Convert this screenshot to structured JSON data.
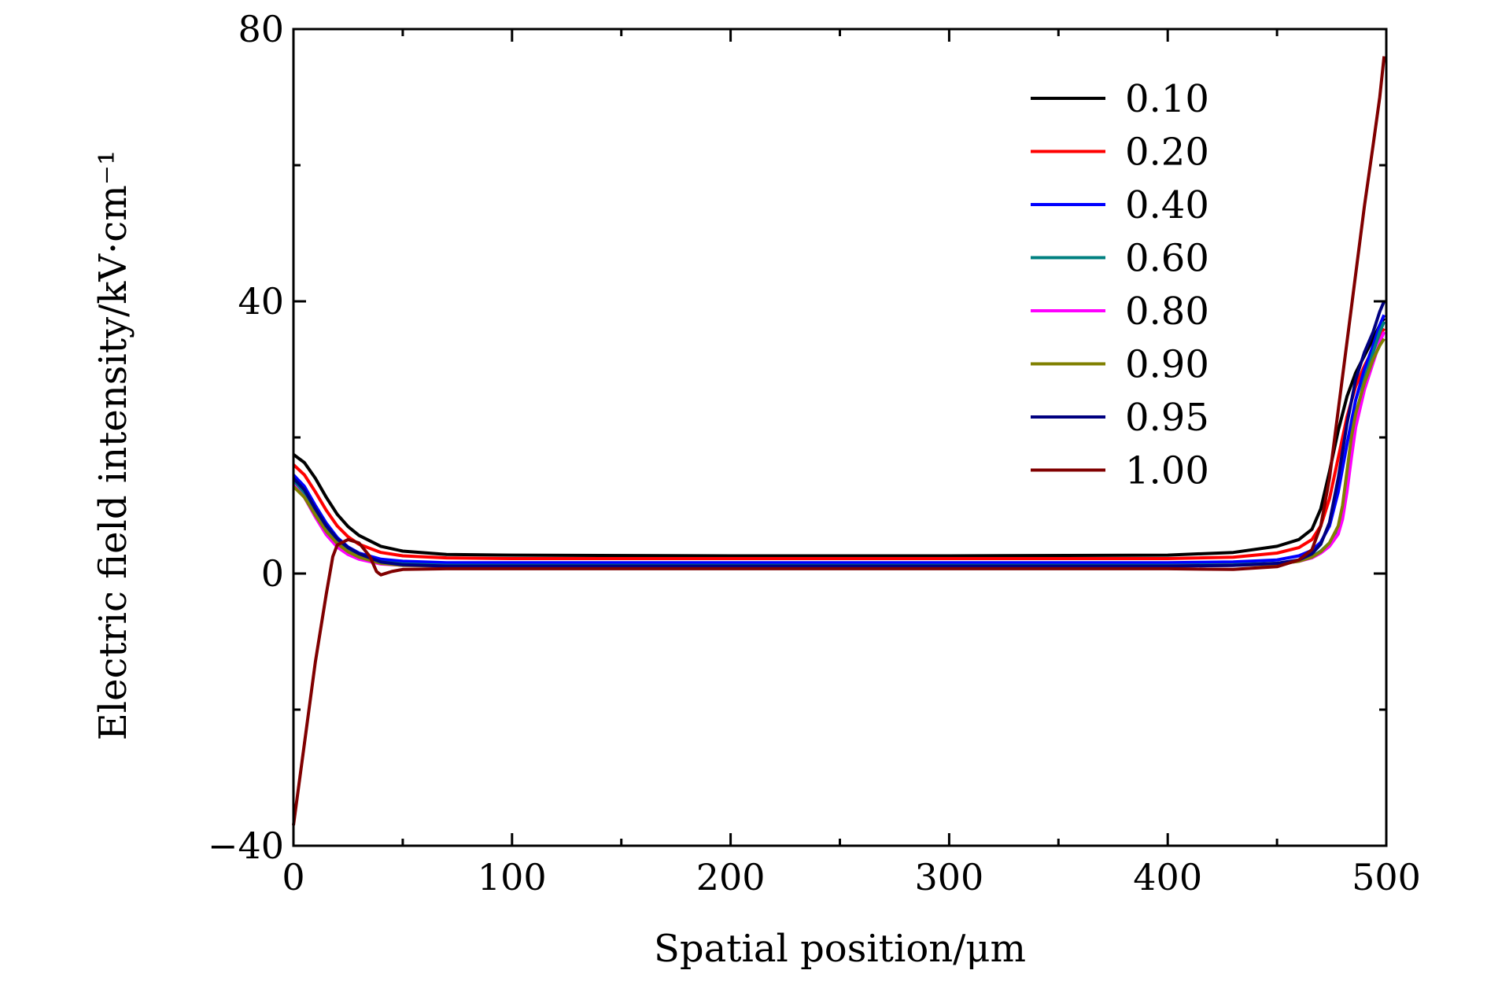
{
  "chart_data": {
    "type": "line",
    "title": "",
    "xlabel": "Spatial position/μm",
    "ylabel": "Electric field intensity/kV·cm⁻¹",
    "xlim": [
      0,
      500
    ],
    "ylim": [
      -40,
      80
    ],
    "x_ticks": [
      0,
      100,
      200,
      300,
      400,
      500
    ],
    "x_tick_labels": [
      "0",
      "100",
      "200",
      "300",
      "400",
      "500"
    ],
    "y_ticks": [
      -40,
      0,
      40,
      80
    ],
    "y_tick_labels": [
      "−40",
      "0",
      "40",
      "80"
    ],
    "grid": false,
    "legend_position": "top-right",
    "series": [
      {
        "name": "0.10",
        "color": "#000000",
        "points": [
          [
            0,
            17.5
          ],
          [
            5,
            16.3
          ],
          [
            10,
            14
          ],
          [
            15,
            11.2
          ],
          [
            20,
            8.7
          ],
          [
            25,
            6.9
          ],
          [
            30,
            5.6
          ],
          [
            40,
            4.0
          ],
          [
            50,
            3.3
          ],
          [
            70,
            2.8
          ],
          [
            100,
            2.7
          ],
          [
            200,
            2.6
          ],
          [
            300,
            2.6
          ],
          [
            400,
            2.7
          ],
          [
            430,
            3.1
          ],
          [
            450,
            4.0
          ],
          [
            460,
            5.0
          ],
          [
            466,
            6.5
          ],
          [
            470,
            9.5
          ],
          [
            474,
            15
          ],
          [
            478,
            21
          ],
          [
            482,
            26
          ],
          [
            486,
            29.5
          ],
          [
            490,
            32
          ],
          [
            494,
            34.5
          ],
          [
            497,
            36.5
          ],
          [
            499,
            37.5
          ]
        ]
      },
      {
        "name": "0.20",
        "color": "#ff0000",
        "points": [
          [
            0,
            16
          ],
          [
            5,
            14.5
          ],
          [
            10,
            12
          ],
          [
            15,
            9.3
          ],
          [
            20,
            7.0
          ],
          [
            25,
            5.4
          ],
          [
            30,
            4.3
          ],
          [
            40,
            3.1
          ],
          [
            50,
            2.6
          ],
          [
            70,
            2.3
          ],
          [
            100,
            2.2
          ],
          [
            200,
            2.2
          ],
          [
            300,
            2.2
          ],
          [
            400,
            2.2
          ],
          [
            430,
            2.4
          ],
          [
            450,
            3.0
          ],
          [
            460,
            3.8
          ],
          [
            466,
            5.0
          ],
          [
            470,
            7.0
          ],
          [
            474,
            11
          ],
          [
            478,
            17
          ],
          [
            482,
            23
          ],
          [
            486,
            27.5
          ],
          [
            490,
            30.5
          ],
          [
            494,
            33
          ],
          [
            497,
            35
          ],
          [
            499,
            36
          ]
        ]
      },
      {
        "name": "0.40",
        "color": "#0000ff",
        "points": [
          [
            0,
            14.5
          ],
          [
            5,
            12.8
          ],
          [
            10,
            10
          ],
          [
            15,
            7.4
          ],
          [
            20,
            5.3
          ],
          [
            25,
            3.9
          ],
          [
            30,
            3.0
          ],
          [
            40,
            2.1
          ],
          [
            50,
            1.8
          ],
          [
            70,
            1.6
          ],
          [
            100,
            1.6
          ],
          [
            200,
            1.6
          ],
          [
            300,
            1.6
          ],
          [
            400,
            1.6
          ],
          [
            430,
            1.7
          ],
          [
            450,
            2.0
          ],
          [
            460,
            2.6
          ],
          [
            466,
            3.4
          ],
          [
            470,
            4.6
          ],
          [
            474,
            7
          ],
          [
            478,
            12
          ],
          [
            482,
            19
          ],
          [
            486,
            25.5
          ],
          [
            490,
            30
          ],
          [
            494,
            33.5
          ],
          [
            497,
            36.5
          ],
          [
            499,
            38
          ]
        ]
      },
      {
        "name": "0.60",
        "color": "#008080",
        "points": [
          [
            0,
            13.5
          ],
          [
            5,
            11.8
          ],
          [
            10,
            9
          ],
          [
            15,
            6.4
          ],
          [
            20,
            4.5
          ],
          [
            25,
            3.3
          ],
          [
            30,
            2.5
          ],
          [
            40,
            1.7
          ],
          [
            50,
            1.4
          ],
          [
            70,
            1.2
          ],
          [
            100,
            1.2
          ],
          [
            200,
            1.2
          ],
          [
            300,
            1.2
          ],
          [
            400,
            1.2
          ],
          [
            430,
            1.3
          ],
          [
            450,
            1.5
          ],
          [
            460,
            1.9
          ],
          [
            466,
            2.5
          ],
          [
            470,
            3.3
          ],
          [
            474,
            4.5
          ],
          [
            478,
            6.5
          ],
          [
            480,
            9
          ],
          [
            482,
            14
          ],
          [
            484,
            19
          ],
          [
            486,
            23
          ],
          [
            490,
            28.5
          ],
          [
            494,
            32.5
          ],
          [
            497,
            35.5
          ],
          [
            499,
            37
          ]
        ]
      },
      {
        "name": "0.80",
        "color": "#ff00ff",
        "points": [
          [
            0,
            13
          ],
          [
            5,
            11.2
          ],
          [
            10,
            8.3
          ],
          [
            15,
            5.7
          ],
          [
            20,
            3.9
          ],
          [
            25,
            2.8
          ],
          [
            30,
            2.1
          ],
          [
            40,
            1.4
          ],
          [
            50,
            1.2
          ],
          [
            70,
            1.1
          ],
          [
            100,
            1.1
          ],
          [
            200,
            1.1
          ],
          [
            300,
            1.1
          ],
          [
            400,
            1.1
          ],
          [
            430,
            1.2
          ],
          [
            450,
            1.4
          ],
          [
            460,
            1.8
          ],
          [
            466,
            2.3
          ],
          [
            470,
            3.0
          ],
          [
            474,
            4.0
          ],
          [
            478,
            5.8
          ],
          [
            480,
            8
          ],
          [
            482,
            12
          ],
          [
            484,
            17
          ],
          [
            486,
            21.5
          ],
          [
            490,
            27
          ],
          [
            494,
            31
          ],
          [
            497,
            34
          ],
          [
            499,
            35.5
          ]
        ]
      },
      {
        "name": "0.90",
        "color": "#808000",
        "points": [
          [
            0,
            12.8
          ],
          [
            5,
            11.2
          ],
          [
            10,
            8.6
          ],
          [
            15,
            6.2
          ],
          [
            20,
            4.4
          ],
          [
            25,
            3.2
          ],
          [
            30,
            2.4
          ],
          [
            40,
            1.5
          ],
          [
            50,
            1.2
          ],
          [
            70,
            1.1
          ],
          [
            100,
            1.1
          ],
          [
            200,
            1.1
          ],
          [
            300,
            1.1
          ],
          [
            400,
            1.1
          ],
          [
            430,
            1.2
          ],
          [
            450,
            1.4
          ],
          [
            460,
            1.8
          ],
          [
            466,
            2.4
          ],
          [
            470,
            3.2
          ],
          [
            474,
            4.5
          ],
          [
            478,
            7
          ],
          [
            480,
            10
          ],
          [
            482,
            15
          ],
          [
            484,
            20
          ],
          [
            486,
            23.5
          ],
          [
            490,
            28
          ],
          [
            494,
            31.5
          ],
          [
            497,
            33.5
          ],
          [
            499,
            34.5
          ]
        ]
      },
      {
        "name": "0.95",
        "color": "#000080",
        "points": [
          [
            0,
            14
          ],
          [
            5,
            12.3
          ],
          [
            10,
            9.5
          ],
          [
            15,
            7
          ],
          [
            20,
            5.1
          ],
          [
            25,
            3.8
          ],
          [
            30,
            2.9
          ],
          [
            40,
            1.7
          ],
          [
            50,
            1.3
          ],
          [
            70,
            1.1
          ],
          [
            100,
            1.1
          ],
          [
            200,
            1.1
          ],
          [
            300,
            1.1
          ],
          [
            400,
            1.1
          ],
          [
            430,
            1.2
          ],
          [
            450,
            1.5
          ],
          [
            460,
            2.0
          ],
          [
            466,
            2.9
          ],
          [
            470,
            4.3
          ],
          [
            474,
            7.5
          ],
          [
            478,
            14
          ],
          [
            482,
            22
          ],
          [
            486,
            28.5
          ],
          [
            490,
            32.5
          ],
          [
            494,
            35.5
          ],
          [
            497,
            38.5
          ],
          [
            499,
            40
          ]
        ]
      },
      {
        "name": "1.00",
        "color": "#800000",
        "points": [
          [
            0,
            -37
          ],
          [
            5,
            -25
          ],
          [
            10,
            -13
          ],
          [
            15,
            -3
          ],
          [
            18,
            2.5
          ],
          [
            20,
            4.2
          ],
          [
            25,
            5
          ],
          [
            30,
            4.5
          ],
          [
            35,
            2.5
          ],
          [
            38,
            0.3
          ],
          [
            40,
            -0.2
          ],
          [
            45,
            0.3
          ],
          [
            50,
            0.6
          ],
          [
            70,
            0.7
          ],
          [
            100,
            0.7
          ],
          [
            200,
            0.7
          ],
          [
            300,
            0.7
          ],
          [
            400,
            0.7
          ],
          [
            430,
            0.6
          ],
          [
            450,
            1.0
          ],
          [
            460,
            2.0
          ],
          [
            466,
            3.5
          ],
          [
            470,
            7
          ],
          [
            474,
            14
          ],
          [
            478,
            24
          ],
          [
            482,
            34
          ],
          [
            486,
            44
          ],
          [
            490,
            54
          ],
          [
            494,
            63
          ],
          [
            497,
            70
          ],
          [
            499,
            76
          ]
        ]
      }
    ]
  }
}
